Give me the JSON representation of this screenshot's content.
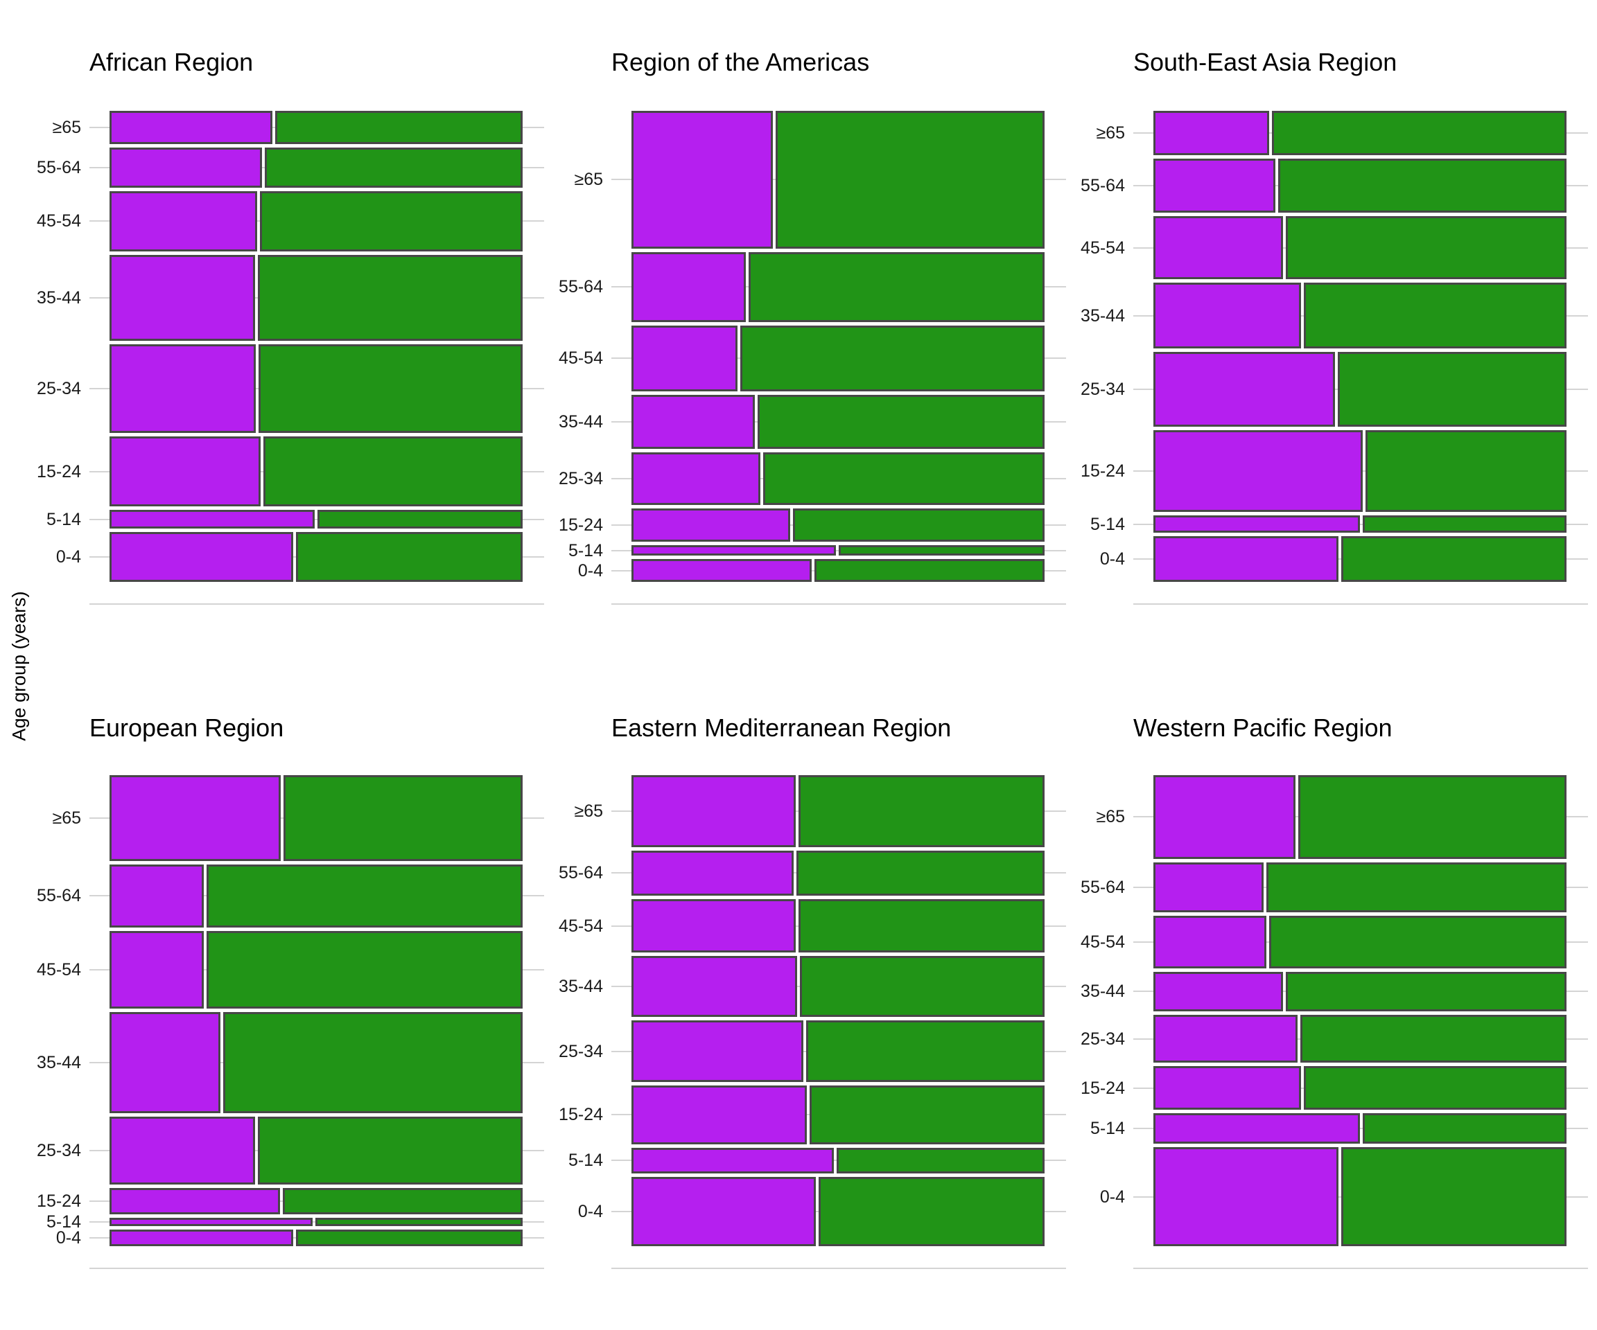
{
  "chart_data": {
    "type": "mosaic",
    "ylabel": "Age group (years)",
    "xlabel": "",
    "age_groups_top_to_bottom": [
      "≥65",
      "55-64",
      "45-54",
      "35-44",
      "25-34",
      "15-24",
      "5-14",
      "0-4"
    ],
    "legend": "none shown",
    "grid": "horizontal light-gray major gridlines at each age-row center; baseline below each panel",
    "colors": {
      "left_segment": "#B51FEF",
      "right_segment": "#219417",
      "segment_border": "#474747",
      "gridline": "#D4D4D4",
      "tick_text": "#1A1A1A",
      "title_text": "#000000"
    },
    "panels": [
      {
        "title": "African Region",
        "row_height_pct": [
          7.5,
          8.9,
          13.5,
          19.3,
          19.8,
          15.7,
          4.2,
          11.1
        ],
        "purple_share_pct": [
          39.7,
          37.1,
          36.0,
          35.4,
          35.6,
          36.8,
          50.0,
          44.8
        ]
      },
      {
        "title": "Region of the Americas",
        "row_height_pct": [
          30.8,
          15.7,
          14.7,
          12.2,
          11.7,
          7.5,
          2.3,
          5.1
        ],
        "purple_share_pct": [
          34.4,
          27.9,
          25.8,
          30.1,
          31.4,
          38.7,
          49.8,
          44.0
        ]
      },
      {
        "title": "South-East Asia Region",
        "row_height_pct": [
          9.9,
          12.1,
          14.2,
          14.6,
          16.8,
          18.3,
          3.9,
          10.2
        ],
        "purple_share_pct": [
          28.2,
          29.7,
          31.6,
          35.9,
          44.3,
          51.0,
          50.3,
          45.1
        ]
      },
      {
        "title": "European Region",
        "row_height_pct": [
          19.2,
          14.1,
          17.4,
          22.7,
          15.1,
          5.9,
          1.9,
          3.7
        ],
        "purple_share_pct": [
          41.8,
          22.9,
          22.9,
          27.0,
          35.5,
          41.5,
          49.5,
          44.7
        ]
      },
      {
        "title": "Eastern Mediterranean Region",
        "row_height_pct": [
          16.1,
          10.1,
          12.0,
          13.6,
          13.8,
          13.1,
          5.8,
          15.5
        ],
        "purple_share_pct": [
          40.1,
          39.5,
          40.1,
          40.4,
          41.9,
          42.7,
          49.3,
          45.0
        ]
      },
      {
        "title": "Western Pacific Region",
        "row_height_pct": [
          18.7,
          11.2,
          11.8,
          8.8,
          10.8,
          9.7,
          6.9,
          22.1
        ],
        "purple_share_pct": [
          34.7,
          26.9,
          27.5,
          31.6,
          35.1,
          35.9,
          50.3,
          45.1
        ]
      }
    ]
  }
}
